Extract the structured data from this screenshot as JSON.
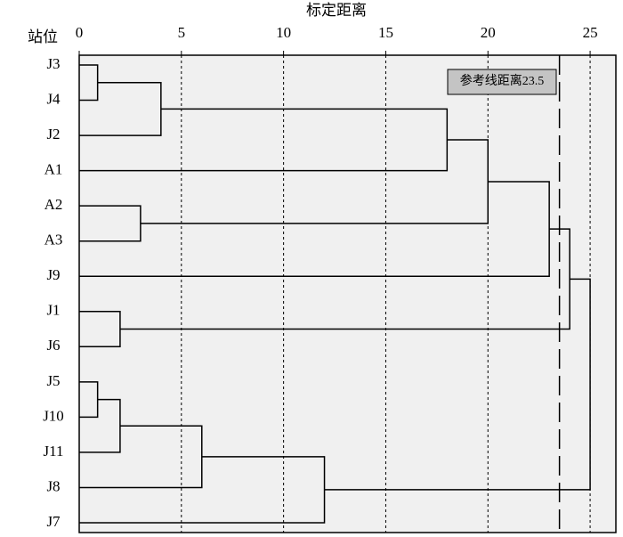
{
  "chart_data": {
    "type": "dendrogram",
    "title": "标定距离",
    "ylabel": "站位",
    "leaves": [
      "J3",
      "J4",
      "J2",
      "A1",
      "A2",
      "A3",
      "J9",
      "J1",
      "J6",
      "J5",
      "J10",
      "J11",
      "J8",
      "J7"
    ],
    "merges": [
      {
        "left": 0,
        "right": 1,
        "height": 0.9
      },
      {
        "left": 14,
        "right": 2,
        "height": 4
      },
      {
        "left": 15,
        "right": 3,
        "height": 18
      },
      {
        "left": 4,
        "right": 5,
        "height": 3
      },
      {
        "left": 16,
        "right": 17,
        "height": 20
      },
      {
        "left": 18,
        "right": 6,
        "height": 23
      },
      {
        "left": 7,
        "right": 8,
        "height": 2
      },
      {
        "left": 19,
        "right": 20,
        "height": 24
      },
      {
        "left": 9,
        "right": 10,
        "height": 0.9
      },
      {
        "left": 22,
        "right": 11,
        "height": 2
      },
      {
        "left": 23,
        "right": 12,
        "height": 6
      },
      {
        "left": 24,
        "right": 13,
        "height": 12
      },
      {
        "left": 21,
        "right": 25,
        "height": 25
      }
    ],
    "xlim": [
      0,
      26.26
    ],
    "xticks": [
      0,
      5,
      10,
      15,
      20,
      25
    ],
    "grid": true,
    "reference_line": {
      "value": 23.5,
      "label": "参考线距离23.5"
    }
  }
}
